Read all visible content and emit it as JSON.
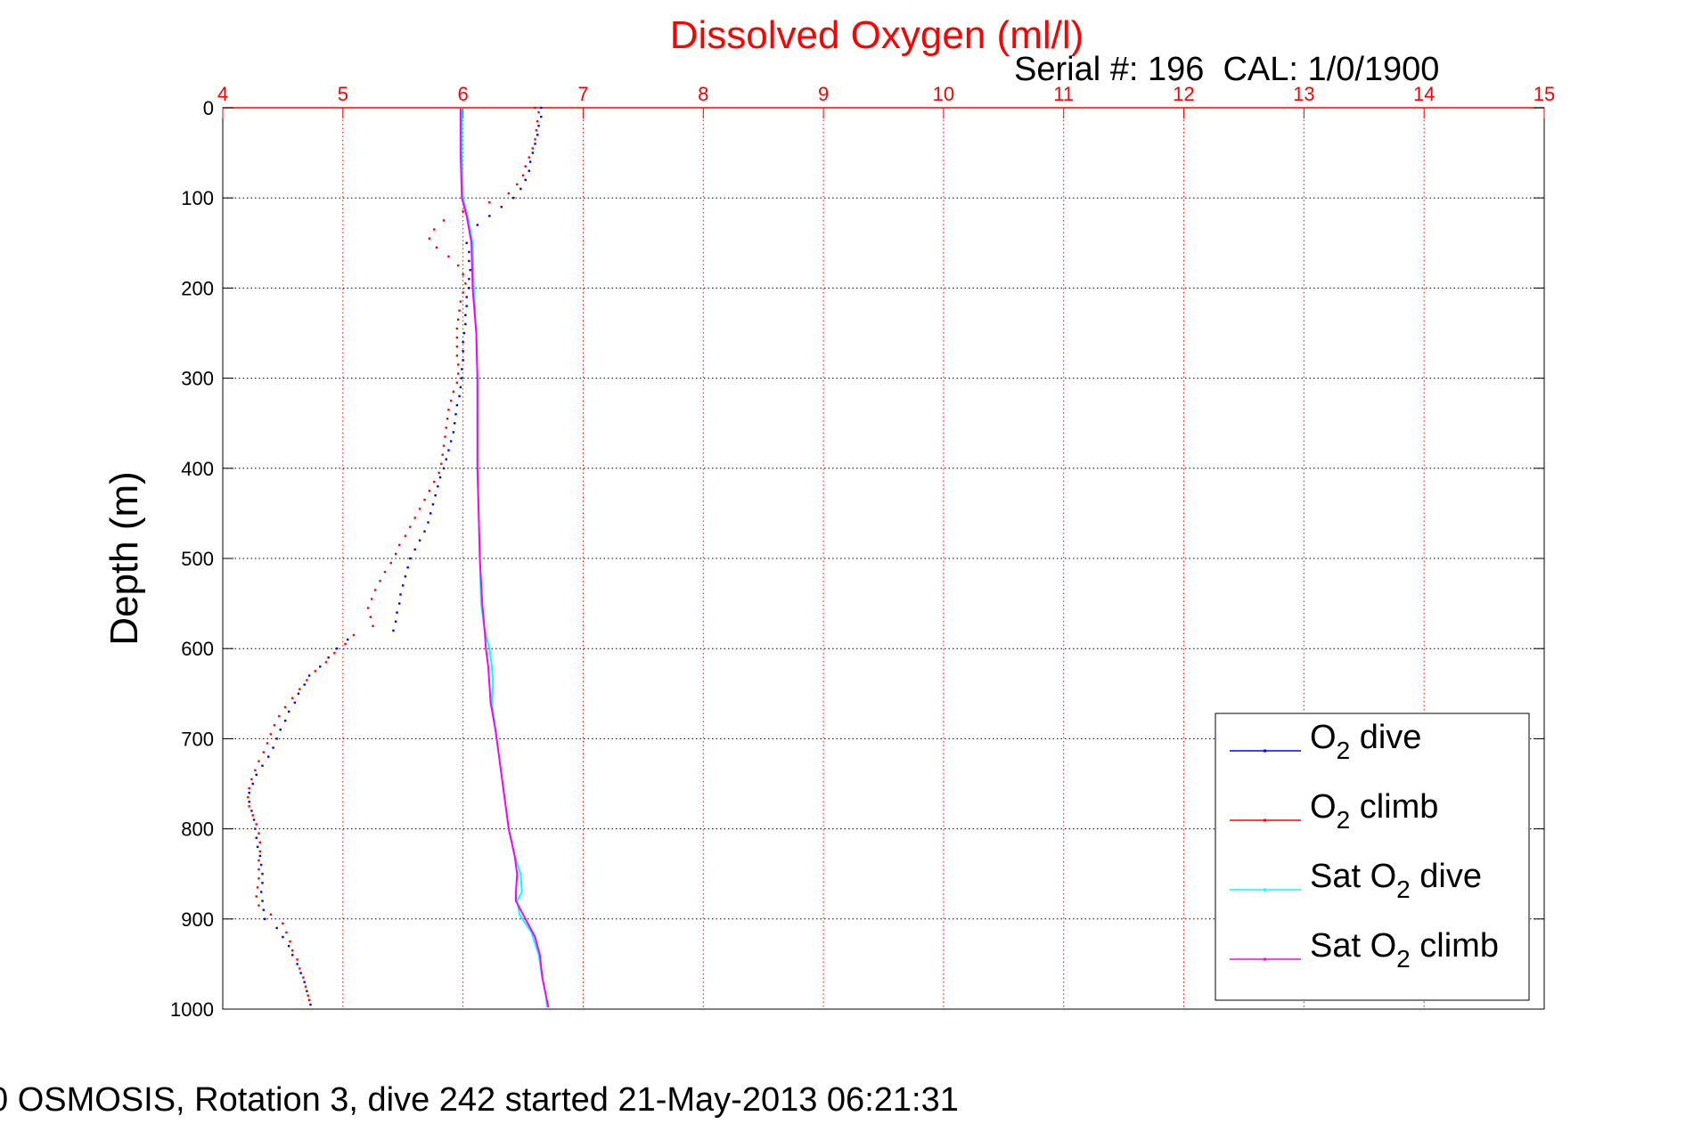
{
  "chart_data": {
    "type": "scatter",
    "title": "Dissolved Oxygen (ml/l)",
    "subtitle": "Serial #: 196  CAL: 1/0/1900",
    "ylabel": "Depth (m)",
    "xlabel": "",
    "xlim": [
      4,
      15
    ],
    "ylim": [
      0,
      1000
    ],
    "y_reversed": true,
    "x_ticks": [
      4,
      5,
      6,
      7,
      8,
      9,
      10,
      11,
      12,
      13,
      14,
      15
    ],
    "y_ticks": [
      0,
      100,
      200,
      300,
      400,
      500,
      600,
      700,
      800,
      900,
      1000
    ],
    "x_axis_position": "top",
    "grid": true,
    "legend_position": "bottom-right",
    "series": [
      {
        "name": "O2 dive",
        "legend_main": "O",
        "legend_sub": "2",
        "legend_rest": " dive",
        "color": "#0000ff",
        "style": "dots",
        "points": [
          [
            6.65,
            0
          ],
          [
            6.65,
            10
          ],
          [
            6.63,
            20
          ],
          [
            6.62,
            30
          ],
          [
            6.6,
            40
          ],
          [
            6.58,
            50
          ],
          [
            6.56,
            60
          ],
          [
            6.55,
            70
          ],
          [
            6.52,
            80
          ],
          [
            6.48,
            90
          ],
          [
            6.42,
            100
          ],
          [
            6.32,
            110
          ],
          [
            6.22,
            120
          ],
          [
            6.12,
            130
          ],
          [
            6.06,
            140
          ],
          [
            6.03,
            150
          ],
          [
            6.05,
            160
          ],
          [
            6.05,
            170
          ],
          [
            6.06,
            180
          ],
          [
            6.05,
            190
          ],
          [
            6.05,
            200
          ],
          [
            6.03,
            210
          ],
          [
            6.03,
            220
          ],
          [
            6.02,
            230
          ],
          [
            6.02,
            240
          ],
          [
            6.01,
            250
          ],
          [
            6.0,
            260
          ],
          [
            6.0,
            270
          ],
          [
            6.0,
            280
          ],
          [
            5.99,
            290
          ],
          [
            5.99,
            300
          ],
          [
            5.98,
            310
          ],
          [
            5.97,
            320
          ],
          [
            5.95,
            330
          ],
          [
            5.94,
            340
          ],
          [
            5.93,
            350
          ],
          [
            5.92,
            360
          ],
          [
            5.9,
            370
          ],
          [
            5.88,
            380
          ],
          [
            5.86,
            390
          ],
          [
            5.84,
            400
          ],
          [
            5.81,
            410
          ],
          [
            5.79,
            420
          ],
          [
            5.77,
            430
          ],
          [
            5.75,
            440
          ],
          [
            5.73,
            450
          ],
          [
            5.71,
            460
          ],
          [
            5.68,
            470
          ],
          [
            5.64,
            480
          ],
          [
            5.6,
            490
          ],
          [
            5.56,
            500
          ],
          [
            5.54,
            510
          ],
          [
            5.52,
            520
          ],
          [
            5.5,
            530
          ],
          [
            5.48,
            540
          ],
          [
            5.47,
            550
          ],
          [
            5.45,
            560
          ],
          [
            5.44,
            570
          ],
          [
            5.42,
            580
          ],
          [
            5.04,
            590
          ],
          [
            4.95,
            600
          ],
          [
            4.88,
            610
          ],
          [
            4.81,
            620
          ],
          [
            4.72,
            630
          ],
          [
            4.68,
            640
          ],
          [
            4.63,
            650
          ],
          [
            4.6,
            660
          ],
          [
            4.55,
            670
          ],
          [
            4.52,
            680
          ],
          [
            4.48,
            690
          ],
          [
            4.45,
            700
          ],
          [
            4.42,
            710
          ],
          [
            4.38,
            720
          ],
          [
            4.33,
            730
          ],
          [
            4.28,
            740
          ],
          [
            4.25,
            750
          ],
          [
            4.22,
            760
          ],
          [
            4.22,
            770
          ],
          [
            4.24,
            780
          ],
          [
            4.26,
            790
          ],
          [
            4.27,
            800
          ],
          [
            4.28,
            810
          ],
          [
            4.29,
            820
          ],
          [
            4.31,
            830
          ],
          [
            4.32,
            840
          ],
          [
            4.33,
            850
          ],
          [
            4.33,
            860
          ],
          [
            4.32,
            870
          ],
          [
            4.33,
            880
          ],
          [
            4.34,
            890
          ],
          [
            4.35,
            900
          ],
          [
            4.45,
            910
          ],
          [
            4.5,
            920
          ],
          [
            4.55,
            930
          ],
          [
            4.58,
            940
          ],
          [
            4.62,
            950
          ],
          [
            4.65,
            960
          ],
          [
            4.68,
            970
          ],
          [
            4.7,
            980
          ],
          [
            4.72,
            990
          ],
          [
            4.73,
            995
          ]
        ]
      },
      {
        "name": "O2 climb",
        "legend_main": "O",
        "legend_sub": "2",
        "legend_rest": " climb",
        "color": "#ff0000",
        "style": "dots",
        "points": [
          [
            6.6,
            0
          ],
          [
            6.63,
            5
          ],
          [
            6.62,
            15
          ],
          [
            6.61,
            25
          ],
          [
            6.6,
            35
          ],
          [
            6.58,
            45
          ],
          [
            6.55,
            55
          ],
          [
            6.52,
            65
          ],
          [
            6.5,
            75
          ],
          [
            6.45,
            85
          ],
          [
            6.38,
            95
          ],
          [
            6.22,
            105
          ],
          [
            6.0,
            115
          ],
          [
            5.84,
            125
          ],
          [
            5.76,
            135
          ],
          [
            5.72,
            145
          ],
          [
            5.78,
            155
          ],
          [
            5.88,
            165
          ],
          [
            5.96,
            175
          ],
          [
            6.0,
            185
          ],
          [
            6.02,
            195
          ],
          [
            6.0,
            205
          ],
          [
            5.98,
            215
          ],
          [
            5.97,
            225
          ],
          [
            5.96,
            235
          ],
          [
            5.95,
            245
          ],
          [
            5.95,
            255
          ],
          [
            5.95,
            265
          ],
          [
            5.95,
            275
          ],
          [
            5.96,
            285
          ],
          [
            5.96,
            295
          ],
          [
            5.95,
            305
          ],
          [
            5.92,
            315
          ],
          [
            5.9,
            325
          ],
          [
            5.88,
            335
          ],
          [
            5.87,
            345
          ],
          [
            5.86,
            355
          ],
          [
            5.85,
            365
          ],
          [
            5.84,
            375
          ],
          [
            5.83,
            385
          ],
          [
            5.82,
            395
          ],
          [
            5.8,
            405
          ],
          [
            5.76,
            415
          ],
          [
            5.72,
            425
          ],
          [
            5.68,
            435
          ],
          [
            5.64,
            445
          ],
          [
            5.6,
            455
          ],
          [
            5.56,
            465
          ],
          [
            5.52,
            475
          ],
          [
            5.47,
            485
          ],
          [
            5.44,
            495
          ],
          [
            5.4,
            505
          ],
          [
            5.35,
            515
          ],
          [
            5.31,
            525
          ],
          [
            5.27,
            535
          ],
          [
            5.24,
            545
          ],
          [
            5.21,
            555
          ],
          [
            5.23,
            565
          ],
          [
            5.25,
            575
          ],
          [
            5.09,
            585
          ],
          [
            5.02,
            595
          ],
          [
            4.93,
            605
          ],
          [
            4.86,
            615
          ],
          [
            4.77,
            625
          ],
          [
            4.7,
            635
          ],
          [
            4.64,
            645
          ],
          [
            4.58,
            655
          ],
          [
            4.52,
            665
          ],
          [
            4.47,
            675
          ],
          [
            4.43,
            685
          ],
          [
            4.4,
            695
          ],
          [
            4.37,
            705
          ],
          [
            4.34,
            715
          ],
          [
            4.3,
            725
          ],
          [
            4.27,
            735
          ],
          [
            4.24,
            745
          ],
          [
            4.22,
            755
          ],
          [
            4.21,
            765
          ],
          [
            4.22,
            775
          ],
          [
            4.25,
            785
          ],
          [
            4.28,
            795
          ],
          [
            4.3,
            805
          ],
          [
            4.31,
            815
          ],
          [
            4.31,
            825
          ],
          [
            4.3,
            835
          ],
          [
            4.3,
            845
          ],
          [
            4.3,
            855
          ],
          [
            4.29,
            865
          ],
          [
            4.28,
            875
          ],
          [
            4.3,
            885
          ],
          [
            4.4,
            895
          ],
          [
            4.5,
            905
          ],
          [
            4.53,
            915
          ],
          [
            4.56,
            925
          ],
          [
            4.58,
            935
          ],
          [
            4.62,
            945
          ],
          [
            4.64,
            955
          ],
          [
            4.67,
            965
          ],
          [
            4.69,
            975
          ],
          [
            4.71,
            985
          ],
          [
            4.72,
            990
          ]
        ]
      },
      {
        "name": "Sat O2 dive",
        "legend_main": "Sat O",
        "legend_sub": "2",
        "legend_rest": " dive",
        "color": "#00ffff",
        "style": "line",
        "points": [
          [
            5.99,
            0
          ],
          [
            5.99,
            50
          ],
          [
            6.0,
            100
          ],
          [
            6.04,
            120
          ],
          [
            6.08,
            150
          ],
          [
            6.09,
            200
          ],
          [
            6.11,
            250
          ],
          [
            6.12,
            300
          ],
          [
            6.12,
            350
          ],
          [
            6.12,
            400
          ],
          [
            6.13,
            450
          ],
          [
            6.14,
            500
          ],
          [
            6.15,
            550
          ],
          [
            6.18,
            580
          ],
          [
            6.22,
            600
          ],
          [
            6.24,
            620
          ],
          [
            6.25,
            640
          ],
          [
            6.24,
            660
          ],
          [
            6.27,
            690
          ],
          [
            6.3,
            720
          ],
          [
            6.34,
            760
          ],
          [
            6.38,
            800
          ],
          [
            6.43,
            830
          ],
          [
            6.48,
            850
          ],
          [
            6.49,
            870
          ],
          [
            6.45,
            880
          ],
          [
            6.47,
            895
          ],
          [
            6.57,
            915
          ],
          [
            6.63,
            940
          ],
          [
            6.66,
            965
          ],
          [
            6.69,
            985
          ],
          [
            6.7,
            998
          ]
        ]
      },
      {
        "name": "Sat O2 climb",
        "legend_main": "Sat O",
        "legend_sub": "2",
        "legend_rest": " climb",
        "color": "#ff00ff",
        "style": "line",
        "points": [
          [
            5.98,
            0
          ],
          [
            5.98,
            50
          ],
          [
            5.99,
            100
          ],
          [
            6.03,
            120
          ],
          [
            6.07,
            150
          ],
          [
            6.08,
            200
          ],
          [
            6.11,
            250
          ],
          [
            6.12,
            300
          ],
          [
            6.12,
            350
          ],
          [
            6.12,
            400
          ],
          [
            6.13,
            450
          ],
          [
            6.14,
            500
          ],
          [
            6.16,
            550
          ],
          [
            6.18,
            580
          ],
          [
            6.19,
            600
          ],
          [
            6.21,
            620
          ],
          [
            6.22,
            640
          ],
          [
            6.23,
            660
          ],
          [
            6.27,
            690
          ],
          [
            6.3,
            720
          ],
          [
            6.34,
            760
          ],
          [
            6.38,
            800
          ],
          [
            6.43,
            830
          ],
          [
            6.45,
            850
          ],
          [
            6.44,
            870
          ],
          [
            6.44,
            880
          ],
          [
            6.52,
            900
          ],
          [
            6.6,
            920
          ],
          [
            6.64,
            940
          ],
          [
            6.66,
            965
          ],
          [
            6.69,
            985
          ],
          [
            6.71,
            998
          ]
        ]
      }
    ]
  },
  "caption": "0 OSMOSIS, Rotation 3, dive 242 started 21-May-2013 06:21:31",
  "colors": {
    "title": "#ff0000",
    "x_tick_labels": "#ff0000",
    "x_grid": "#ff0000",
    "y_grid": "#000000"
  }
}
